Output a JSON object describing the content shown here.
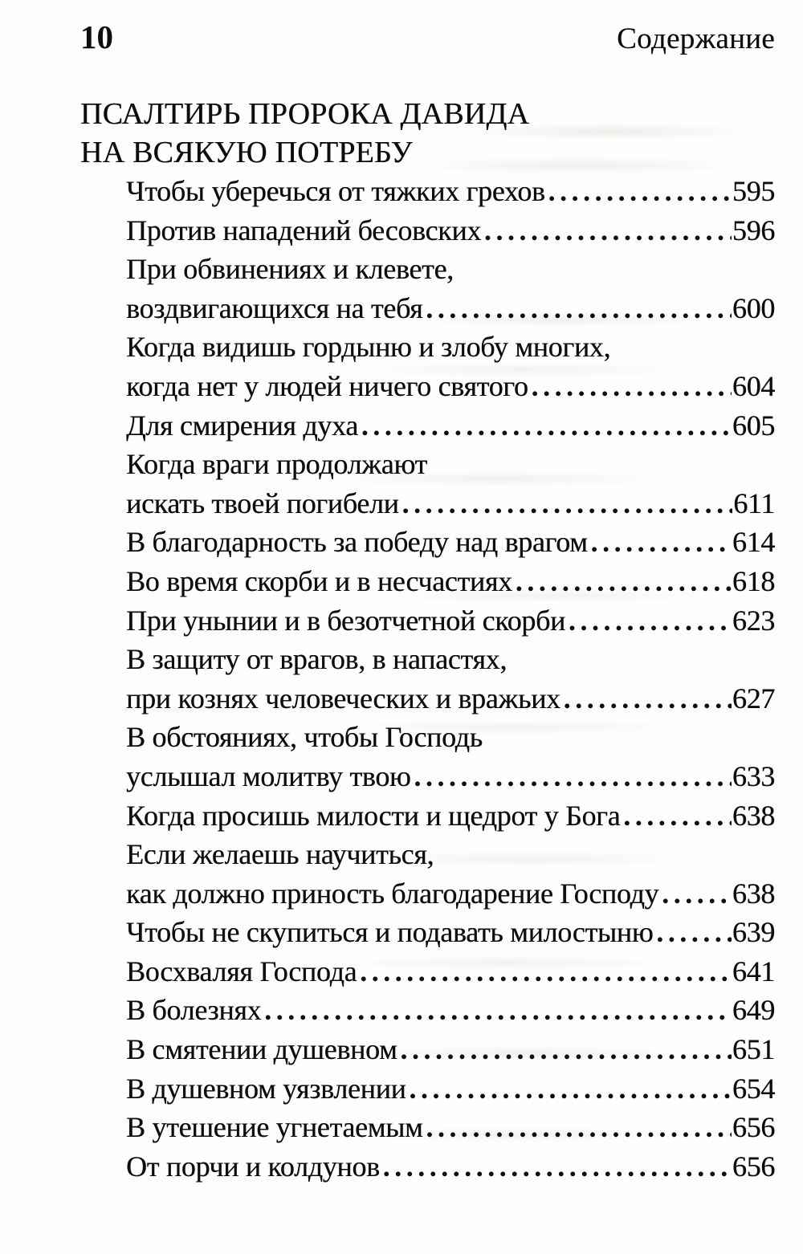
{
  "page_header": {
    "page_number": "10",
    "running_title": "Содержание"
  },
  "section_heading": {
    "line1": "ПСАЛТИРЬ ПРОРОКА ДАВИДА",
    "line2": "НА ВСЯКУЮ ПОТРЕБУ"
  },
  "toc": {
    "entries": [
      {
        "lines": [
          "Чтобы уберечься от тяжких грехов"
        ],
        "page": "595"
      },
      {
        "lines": [
          "Против нападений бесовских"
        ],
        "page": "596"
      },
      {
        "lines": [
          "При обвинениях и клевете,",
          "воздвигающихся на тебя"
        ],
        "page": "600"
      },
      {
        "lines": [
          "Когда видишь гордыню и злобу многих,",
          "когда нет у людей ничего святого"
        ],
        "page": "604"
      },
      {
        "lines": [
          "Для смирения духа"
        ],
        "page": "605"
      },
      {
        "lines": [
          "Когда враги продолжают",
          "искать твоей погибели"
        ],
        "page": "611"
      },
      {
        "lines": [
          "В благодарность за победу над врагом"
        ],
        "page": "614"
      },
      {
        "lines": [
          "Во время скорби и в несчастиях"
        ],
        "page": "618"
      },
      {
        "lines": [
          "При унынии и в безотчетной скорби"
        ],
        "page": "623"
      },
      {
        "lines": [
          "В защиту от врагов, в напастях,",
          "при кознях человеческих и вражьих"
        ],
        "page": "627"
      },
      {
        "lines": [
          "В обстояниях, чтобы Господь",
          "услышал молитву твою"
        ],
        "page": "633"
      },
      {
        "lines": [
          "Когда просишь милости и щедрот у Бога"
        ],
        "page": "638"
      },
      {
        "lines": [
          "Если желаешь научиться,",
          "как должно приность благодарение Господу"
        ],
        "page": "638"
      },
      {
        "lines": [
          "Чтобы не скупиться и подавать милостыню"
        ],
        "page": "639"
      },
      {
        "lines": [
          "Восхваляя Господа"
        ],
        "page": "641"
      },
      {
        "lines": [
          "В болезнях"
        ],
        "page": "649"
      },
      {
        "lines": [
          "В смятении душевном"
        ],
        "page": "651"
      },
      {
        "lines": [
          "В душевном уязвлении"
        ],
        "page": "654"
      },
      {
        "lines": [
          "В утешение угнетаемым"
        ],
        "page": "656"
      },
      {
        "lines": [
          "От порчи и колдунов"
        ],
        "page": "656"
      }
    ]
  }
}
